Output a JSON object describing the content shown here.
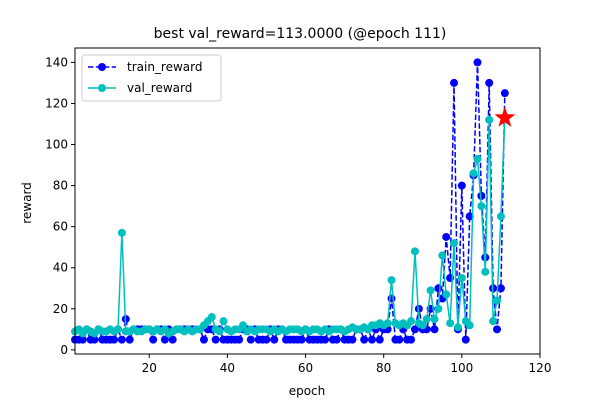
{
  "chart_data": {
    "type": "line",
    "title": "best val_reward=113.0000 (@epoch 111)",
    "xlabel": "epoch",
    "ylabel": "reward",
    "xlim": [
      1,
      120
    ],
    "ylim": [
      -2,
      147
    ],
    "xticks": [
      20,
      40,
      60,
      80,
      100,
      120
    ],
    "yticks": [
      0,
      20,
      40,
      60,
      80,
      100,
      120,
      140
    ],
    "grid": false,
    "legend_position": "top-left",
    "series": [
      {
        "name": "train_reward",
        "color": "#0000ff",
        "style": "dashed",
        "marker": "circle",
        "x": [
          1,
          2,
          3,
          4,
          5,
          6,
          7,
          8,
          9,
          10,
          11,
          12,
          13,
          14,
          15,
          16,
          17,
          18,
          19,
          20,
          21,
          22,
          23,
          24,
          25,
          26,
          27,
          28,
          29,
          30,
          31,
          32,
          33,
          34,
          35,
          36,
          37,
          38,
          39,
          40,
          41,
          42,
          43,
          44,
          45,
          46,
          47,
          48,
          49,
          50,
          51,
          52,
          53,
          54,
          55,
          56,
          57,
          58,
          59,
          60,
          61,
          62,
          63,
          64,
          65,
          66,
          67,
          68,
          69,
          70,
          71,
          72,
          73,
          74,
          75,
          76,
          77,
          78,
          79,
          80,
          81,
          82,
          83,
          84,
          85,
          86,
          87,
          88,
          89,
          90,
          91,
          92,
          93,
          94,
          95,
          96,
          97,
          98,
          99,
          100,
          101,
          102,
          103,
          104,
          105,
          106,
          107,
          108,
          109,
          110,
          111
        ],
        "y": [
          5,
          5,
          5,
          10,
          5,
          5,
          10,
          5,
          5,
          5,
          5,
          10,
          5,
          15,
          5,
          10,
          10,
          10,
          10,
          10,
          5,
          10,
          10,
          5,
          10,
          5,
          10,
          10,
          10,
          10,
          10,
          10,
          10,
          5,
          10,
          10,
          5,
          10,
          5,
          5,
          5,
          5,
          5,
          10,
          10,
          5,
          10,
          5,
          5,
          5,
          10,
          5,
          10,
          10,
          5,
          5,
          5,
          5,
          5,
          10,
          5,
          5,
          5,
          5,
          5,
          10,
          5,
          5,
          10,
          5,
          5,
          5,
          10,
          10,
          5,
          10,
          5,
          10,
          5,
          10,
          10,
          25,
          5,
          5,
          10,
          5,
          5,
          10,
          20,
          10,
          10,
          20,
          10,
          30,
          25,
          55,
          35,
          130,
          10,
          80,
          5,
          65,
          85,
          140,
          75,
          45,
          130,
          30,
          10,
          30,
          125
        ]
      },
      {
        "name": "val_reward",
        "color": "#00bfbf",
        "style": "solid",
        "marker": "circle",
        "x": [
          1,
          2,
          3,
          4,
          5,
          6,
          7,
          8,
          9,
          10,
          11,
          12,
          13,
          14,
          15,
          16,
          17,
          18,
          19,
          20,
          21,
          22,
          23,
          24,
          25,
          26,
          27,
          28,
          29,
          30,
          31,
          32,
          33,
          34,
          35,
          36,
          37,
          38,
          39,
          40,
          41,
          42,
          43,
          44,
          45,
          46,
          47,
          48,
          49,
          50,
          51,
          52,
          53,
          54,
          55,
          56,
          57,
          58,
          59,
          60,
          61,
          62,
          63,
          64,
          65,
          66,
          67,
          68,
          69,
          70,
          71,
          72,
          73,
          74,
          75,
          76,
          77,
          78,
          79,
          80,
          81,
          82,
          83,
          84,
          85,
          86,
          87,
          88,
          89,
          90,
          91,
          92,
          93,
          94,
          95,
          96,
          97,
          98,
          99,
          100,
          101,
          102,
          103,
          104,
          105,
          106,
          107,
          108,
          109,
          110,
          111
        ],
        "y": [
          9,
          10,
          8,
          10,
          9,
          8,
          10,
          9,
          9,
          10,
          9,
          10,
          57,
          9,
          9,
          10,
          9,
          9,
          10,
          10,
          9,
          10,
          9,
          10,
          8,
          9,
          10,
          10,
          9,
          10,
          9,
          10,
          10,
          12,
          14,
          16,
          10,
          9,
          14,
          10,
          9,
          10,
          10,
          12,
          9,
          10,
          9,
          10,
          10,
          10,
          9,
          10,
          9,
          10,
          9,
          10,
          10,
          10,
          9,
          10,
          9,
          10,
          10,
          9,
          10,
          9,
          10,
          10,
          10,
          9,
          10,
          11,
          10,
          10,
          11,
          10,
          12,
          12,
          13,
          12,
          13,
          34,
          13,
          12,
          13,
          12,
          14,
          48,
          13,
          12,
          15,
          29,
          15,
          20,
          46,
          27,
          13,
          52,
          11,
          35,
          14,
          12,
          86,
          93,
          70,
          38,
          112,
          14,
          24,
          65,
          113
        ]
      }
    ],
    "best_marker": {
      "x": 111,
      "y": 113,
      "color": "#ff0000",
      "shape": "star"
    }
  }
}
